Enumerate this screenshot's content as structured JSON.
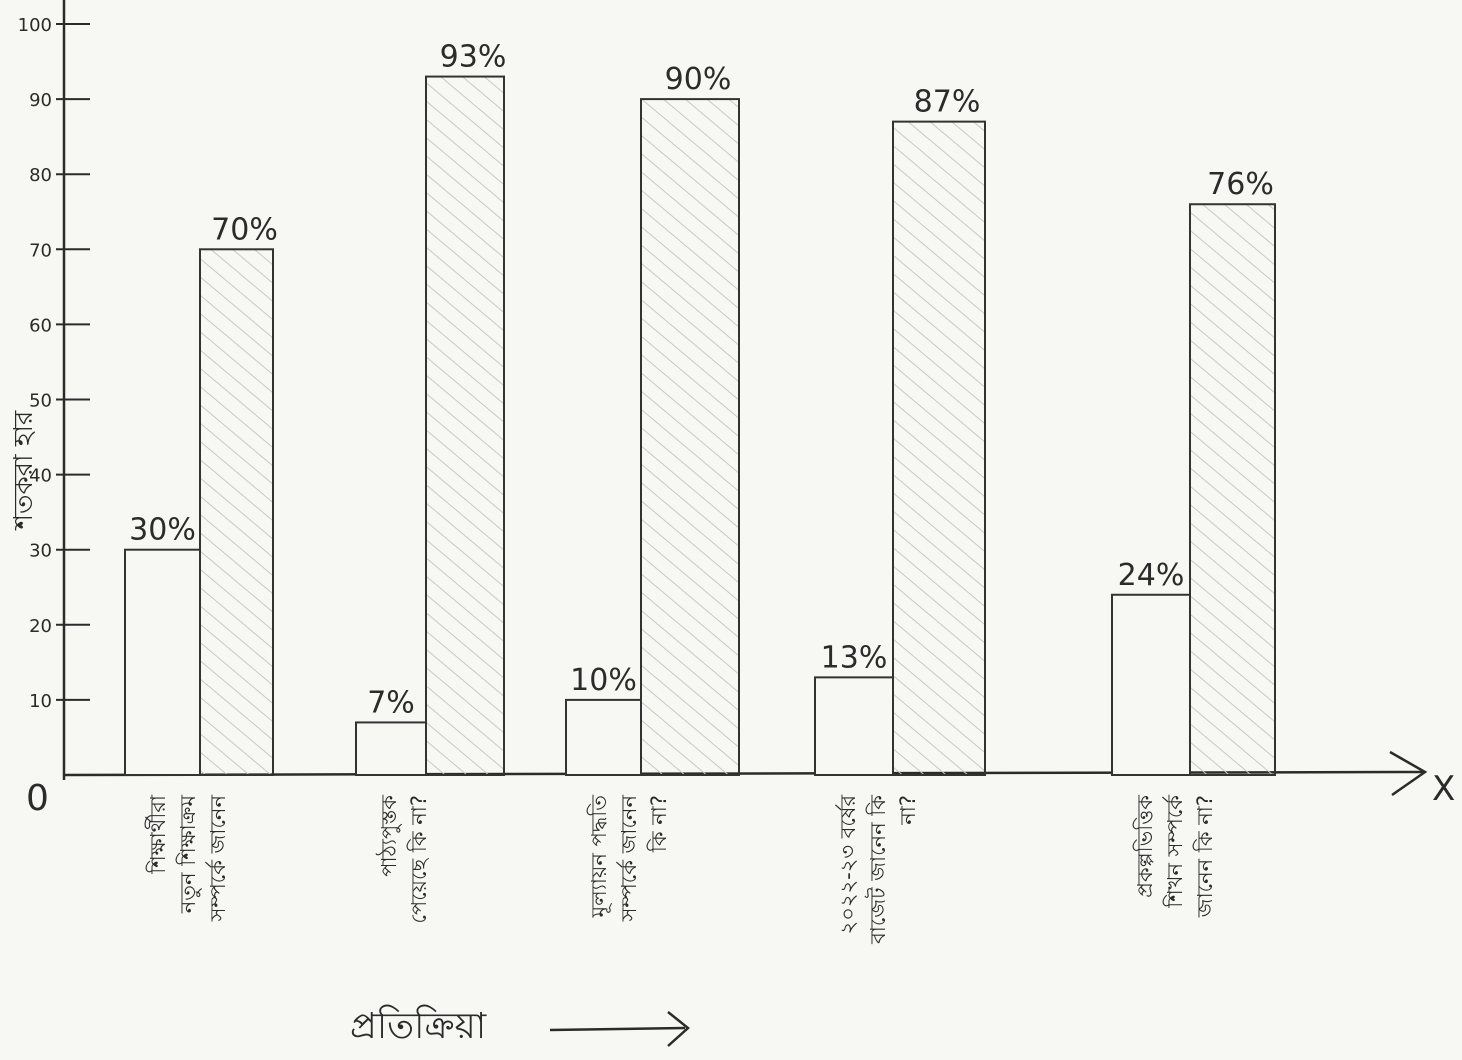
{
  "chart_data": {
    "type": "bar",
    "ylabel": "শতকরা হার",
    "xlabel": "প্রতিক্রিয়া",
    "origin_label": "0",
    "x_axis_end_label": "X",
    "yticks": [
      10,
      20,
      30,
      40,
      50,
      60,
      70,
      80,
      90,
      100
    ],
    "ylim": [
      0,
      100
    ],
    "categories": [
      "শিক্ষার্থীরা নতুন শিক্ষাক্রম সম্পর্কে জানেন",
      "পাঠ্যপুস্তক পেয়েছে কি না?",
      "মূল্যায়ন পদ্ধতি সম্পর্কে জানেন কি না?",
      "২০২২-২৩ বর্ষের বাজেট জানেন কি না?",
      "প্রকল্পভিত্তিক শিখন সম্পর্কে জানেন কি না?"
    ],
    "series": [
      {
        "values": [
          30,
          7,
          10,
          13,
          24
        ],
        "labels": [
          "30%",
          "7%",
          "10%",
          "13%",
          "24%"
        ]
      },
      {
        "values": [
          70,
          93,
          90,
          87,
          76
        ],
        "labels": [
          "70%",
          "93%",
          "90%",
          "87%",
          "76%"
        ]
      }
    ],
    "colors": {
      "ink": "#2b2b2b",
      "paper": "#f7f7f3",
      "hatch": "#c9c9c4"
    }
  }
}
